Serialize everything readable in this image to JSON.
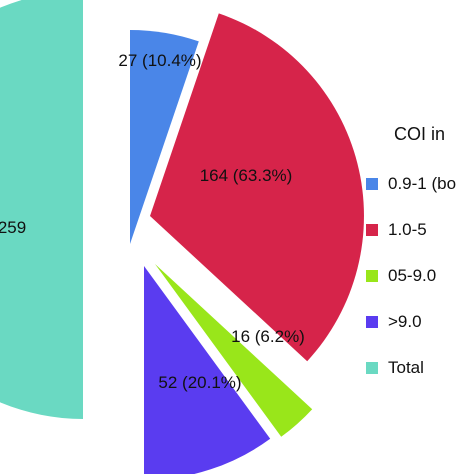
{
  "chart_data": {
    "type": "pie",
    "slices": [
      {
        "label": "0.9-1 (bo",
        "value": 27,
        "data_label": "27 (10.4%)",
        "color": "#4a86e8"
      },
      {
        "label": "1.0-5",
        "value": 164,
        "data_label": "164 (63.3%)",
        "color": "#d6244a"
      },
      {
        "label": "05-9.0",
        "value": 16,
        "data_label": "16 (6.2%)",
        "color": "#99e61a"
      },
      {
        "label": ">9.0",
        "value": 52,
        "data_label": "52 (20.1%)",
        "color": "#5a3cf0"
      },
      {
        "label": "Total",
        "value": 259,
        "data_label": "259",
        "color": "#6ad9c2"
      }
    ],
    "legend_title": "COI in",
    "legend_position": "right",
    "exploded": true
  }
}
